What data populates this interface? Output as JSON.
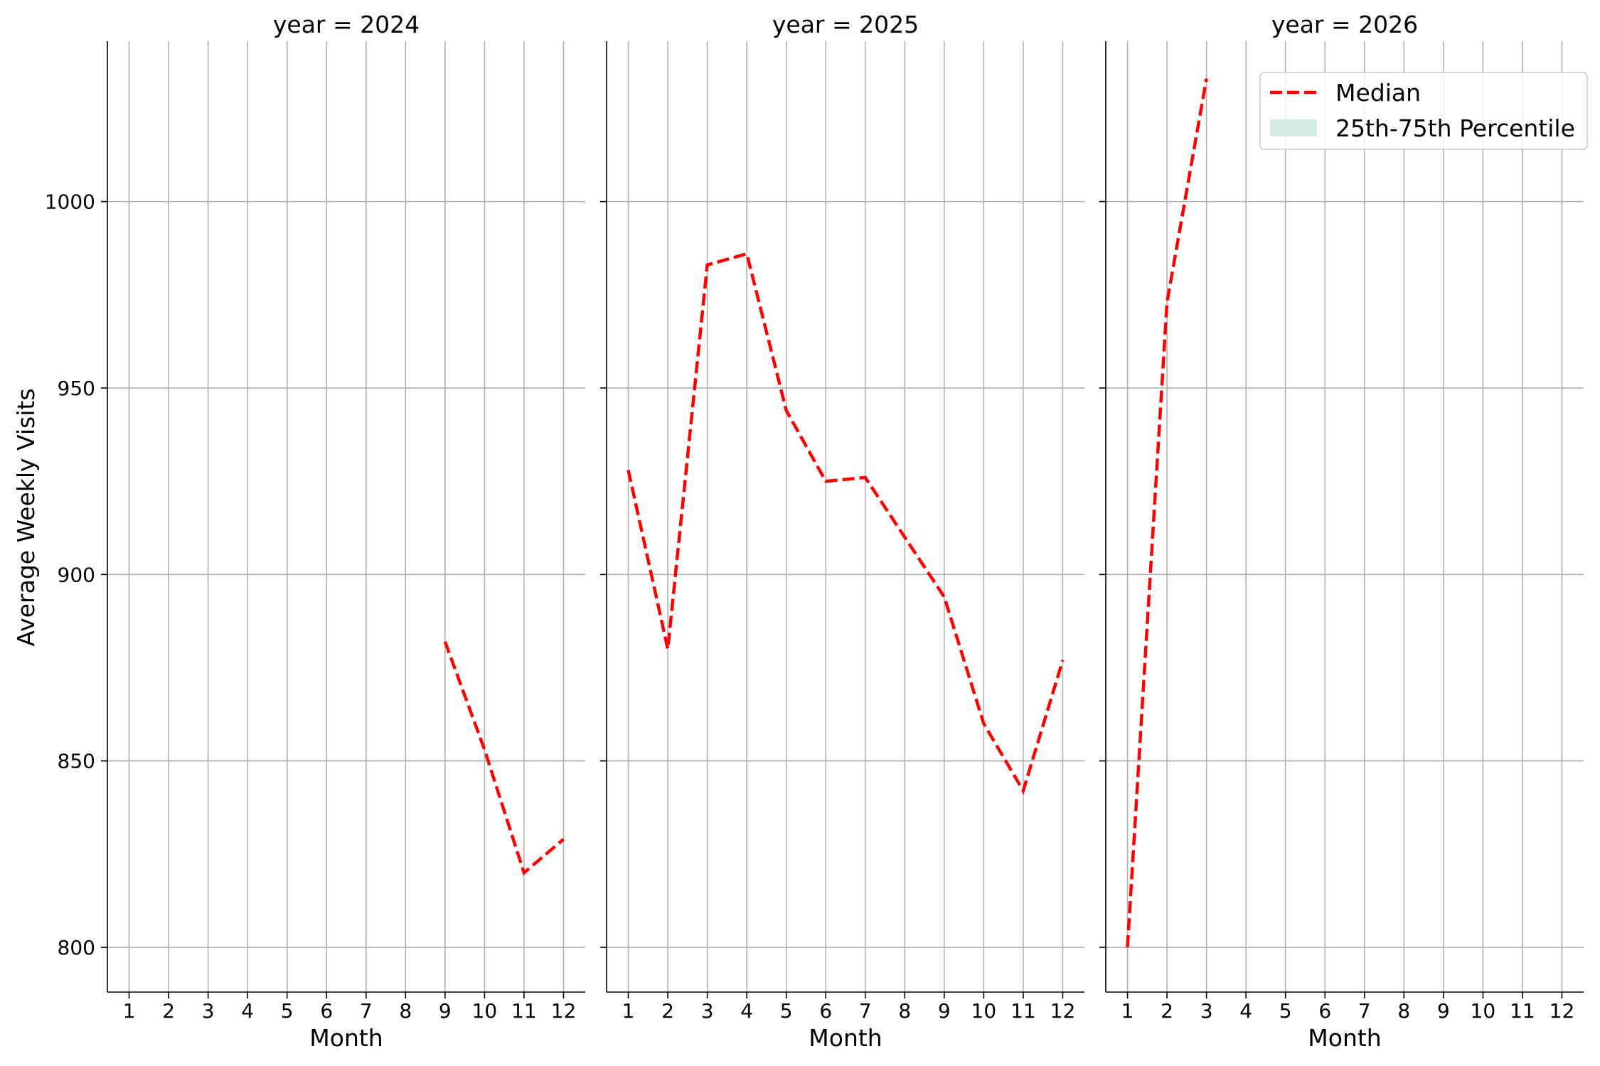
{
  "chart_data": {
    "type": "line",
    "ylabel": "Average Weekly Visits",
    "ylim": [
      788,
      1043
    ],
    "yticks": [
      800,
      850,
      900,
      950,
      1000
    ],
    "xlim": [
      0.45,
      12.55
    ],
    "xticks": [
      1,
      2,
      3,
      4,
      5,
      6,
      7,
      8,
      9,
      10,
      11,
      12
    ],
    "grid": true,
    "legend": {
      "placement": "top-right",
      "entries": [
        {
          "label": "Median",
          "style": "dashed-line",
          "color": "#ff0000"
        },
        {
          "label": "25th-75th Percentile",
          "style": "band",
          "color": "#d5ece5"
        }
      ]
    },
    "panels": [
      {
        "title": "year = 2024",
        "xlabel": "Month",
        "series": [
          {
            "name": "Median",
            "x": [
              9,
              10,
              11,
              12
            ],
            "y": [
              882,
              853,
              820,
              829
            ]
          }
        ]
      },
      {
        "title": "year = 2025",
        "xlabel": "Month",
        "series": [
          {
            "name": "Median",
            "x": [
              1,
              2,
              3,
              4,
              5,
              6,
              7,
              8,
              9,
              10,
              11,
              12
            ],
            "y": [
              928,
              880,
              983,
              986,
              944,
              925,
              926,
              910,
              894,
              860,
              842,
              877
            ]
          }
        ]
      },
      {
        "title": "year = 2026",
        "xlabel": "Month",
        "series": [
          {
            "name": "Median",
            "x": [
              1,
              2,
              3
            ],
            "y": [
              800,
              973,
              1033
            ]
          }
        ]
      }
    ]
  }
}
